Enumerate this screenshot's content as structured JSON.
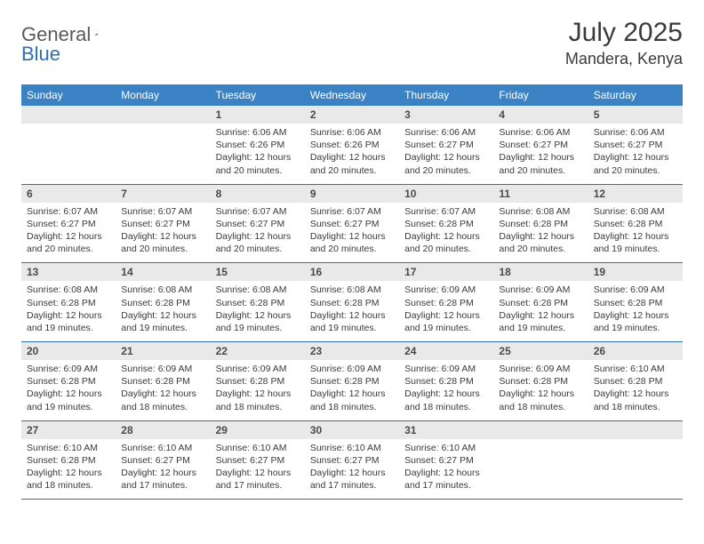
{
  "brand": {
    "general": "General",
    "blue": "Blue"
  },
  "title": "July 2025",
  "location": "Mandera, Kenya",
  "colors": {
    "header_bg": "#3b82c4",
    "header_text": "#ffffff",
    "daynum_bg": "#e9e9e9",
    "border": "#2f6fb0",
    "logo_general": "#5a5a5a",
    "logo_blue": "#2f6fb0",
    "text": "#3a3a3a"
  },
  "weekdays": [
    "Sunday",
    "Monday",
    "Tuesday",
    "Wednesday",
    "Thursday",
    "Friday",
    "Saturday"
  ],
  "first_weekday": 2,
  "days_in_month": 31,
  "days": {
    "1": {
      "sunrise": "6:06 AM",
      "sunset": "6:26 PM",
      "daylight": "12 hours and 20 minutes."
    },
    "2": {
      "sunrise": "6:06 AM",
      "sunset": "6:26 PM",
      "daylight": "12 hours and 20 minutes."
    },
    "3": {
      "sunrise": "6:06 AM",
      "sunset": "6:27 PM",
      "daylight": "12 hours and 20 minutes."
    },
    "4": {
      "sunrise": "6:06 AM",
      "sunset": "6:27 PM",
      "daylight": "12 hours and 20 minutes."
    },
    "5": {
      "sunrise": "6:06 AM",
      "sunset": "6:27 PM",
      "daylight": "12 hours and 20 minutes."
    },
    "6": {
      "sunrise": "6:07 AM",
      "sunset": "6:27 PM",
      "daylight": "12 hours and 20 minutes."
    },
    "7": {
      "sunrise": "6:07 AM",
      "sunset": "6:27 PM",
      "daylight": "12 hours and 20 minutes."
    },
    "8": {
      "sunrise": "6:07 AM",
      "sunset": "6:27 PM",
      "daylight": "12 hours and 20 minutes."
    },
    "9": {
      "sunrise": "6:07 AM",
      "sunset": "6:27 PM",
      "daylight": "12 hours and 20 minutes."
    },
    "10": {
      "sunrise": "6:07 AM",
      "sunset": "6:28 PM",
      "daylight": "12 hours and 20 minutes."
    },
    "11": {
      "sunrise": "6:08 AM",
      "sunset": "6:28 PM",
      "daylight": "12 hours and 20 minutes."
    },
    "12": {
      "sunrise": "6:08 AM",
      "sunset": "6:28 PM",
      "daylight": "12 hours and 19 minutes."
    },
    "13": {
      "sunrise": "6:08 AM",
      "sunset": "6:28 PM",
      "daylight": "12 hours and 19 minutes."
    },
    "14": {
      "sunrise": "6:08 AM",
      "sunset": "6:28 PM",
      "daylight": "12 hours and 19 minutes."
    },
    "15": {
      "sunrise": "6:08 AM",
      "sunset": "6:28 PM",
      "daylight": "12 hours and 19 minutes."
    },
    "16": {
      "sunrise": "6:08 AM",
      "sunset": "6:28 PM",
      "daylight": "12 hours and 19 minutes."
    },
    "17": {
      "sunrise": "6:09 AM",
      "sunset": "6:28 PM",
      "daylight": "12 hours and 19 minutes."
    },
    "18": {
      "sunrise": "6:09 AM",
      "sunset": "6:28 PM",
      "daylight": "12 hours and 19 minutes."
    },
    "19": {
      "sunrise": "6:09 AM",
      "sunset": "6:28 PM",
      "daylight": "12 hours and 19 minutes."
    },
    "20": {
      "sunrise": "6:09 AM",
      "sunset": "6:28 PM",
      "daylight": "12 hours and 19 minutes."
    },
    "21": {
      "sunrise": "6:09 AM",
      "sunset": "6:28 PM",
      "daylight": "12 hours and 18 minutes."
    },
    "22": {
      "sunrise": "6:09 AM",
      "sunset": "6:28 PM",
      "daylight": "12 hours and 18 minutes."
    },
    "23": {
      "sunrise": "6:09 AM",
      "sunset": "6:28 PM",
      "daylight": "12 hours and 18 minutes."
    },
    "24": {
      "sunrise": "6:09 AM",
      "sunset": "6:28 PM",
      "daylight": "12 hours and 18 minutes."
    },
    "25": {
      "sunrise": "6:09 AM",
      "sunset": "6:28 PM",
      "daylight": "12 hours and 18 minutes."
    },
    "26": {
      "sunrise": "6:10 AM",
      "sunset": "6:28 PM",
      "daylight": "12 hours and 18 minutes."
    },
    "27": {
      "sunrise": "6:10 AM",
      "sunset": "6:28 PM",
      "daylight": "12 hours and 18 minutes."
    },
    "28": {
      "sunrise": "6:10 AM",
      "sunset": "6:27 PM",
      "daylight": "12 hours and 17 minutes."
    },
    "29": {
      "sunrise": "6:10 AM",
      "sunset": "6:27 PM",
      "daylight": "12 hours and 17 minutes."
    },
    "30": {
      "sunrise": "6:10 AM",
      "sunset": "6:27 PM",
      "daylight": "12 hours and 17 minutes."
    },
    "31": {
      "sunrise": "6:10 AM",
      "sunset": "6:27 PM",
      "daylight": "12 hours and 17 minutes."
    }
  },
  "labels": {
    "sunrise": "Sunrise:",
    "sunset": "Sunset:",
    "daylight": "Daylight:"
  }
}
